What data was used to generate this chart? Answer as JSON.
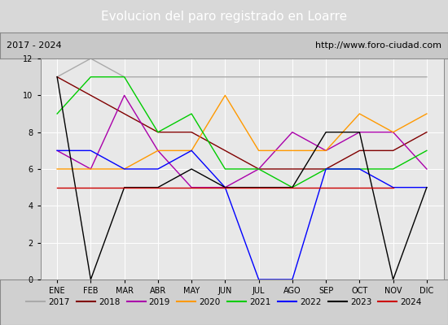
{
  "title": "Evolucion del paro registrado en Loarre",
  "subtitle_left": "2017 - 2024",
  "subtitle_right": "http://www.foro-ciudad.com",
  "months": [
    "ENE",
    "FEB",
    "MAR",
    "ABR",
    "MAY",
    "JUN",
    "JUL",
    "AGO",
    "SEP",
    "OCT",
    "NOV",
    "DIC"
  ],
  "series": {
    "2017": {
      "color": "#aaaaaa",
      "data": [
        11,
        12,
        11,
        11,
        11,
        11,
        11,
        11,
        11,
        11,
        11,
        11
      ]
    },
    "2018": {
      "color": "#800000",
      "data": [
        11,
        10,
        9,
        8,
        8,
        7,
        6,
        6,
        6,
        7,
        7,
        8
      ]
    },
    "2019": {
      "color": "#aa00aa",
      "data": [
        7,
        6,
        10,
        7,
        5,
        5,
        6,
        8,
        7,
        8,
        8,
        6
      ]
    },
    "2020": {
      "color": "#ff9900",
      "data": [
        6,
        6,
        6,
        7,
        7,
        10,
        7,
        7,
        7,
        9,
        8,
        9
      ]
    },
    "2021": {
      "color": "#00cc00",
      "data": [
        9,
        11,
        11,
        8,
        9,
        6,
        6,
        5,
        6,
        6,
        6,
        7
      ]
    },
    "2022": {
      "color": "#0000ff",
      "data": [
        7,
        7,
        6,
        6,
        7,
        5,
        0,
        0,
        6,
        6,
        5,
        5
      ]
    },
    "2023": {
      "color": "#000000",
      "data": [
        11,
        0,
        5,
        5,
        6,
        5,
        5,
        5,
        8,
        8,
        0,
        5
      ]
    },
    "2024": {
      "color": "#cc0000",
      "data": [
        5,
        null,
        null,
        null,
        null,
        null,
        null,
        null,
        null,
        null,
        5,
        null
      ]
    }
  },
  "ylim": [
    0,
    12
  ],
  "yticks": [
    0,
    2,
    4,
    6,
    8,
    10,
    12
  ],
  "bg_color": "#d8d8d8",
  "plot_bg_color": "#e8e8e8",
  "title_bg_color": "#4f81bd",
  "title_color": "#ffffff",
  "header_bg_color": "#c8c8c8",
  "legend_bg_color": "#d0d0d0"
}
